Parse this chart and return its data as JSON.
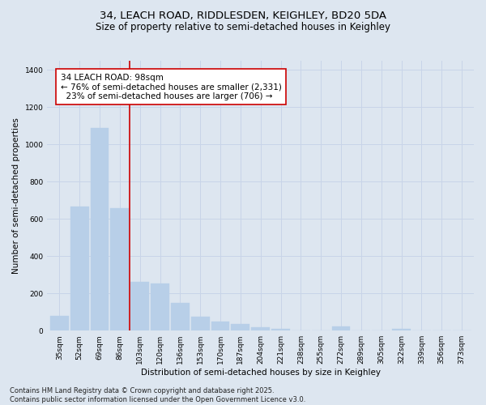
{
  "title_line1": "34, LEACH ROAD, RIDDLESDEN, KEIGHLEY, BD20 5DA",
  "title_line2": "Size of property relative to semi-detached houses in Keighley",
  "xlabel": "Distribution of semi-detached houses by size in Keighley",
  "ylabel": "Number of semi-detached properties",
  "categories": [
    "35sqm",
    "52sqm",
    "69sqm",
    "86sqm",
    "103sqm",
    "120sqm",
    "136sqm",
    "153sqm",
    "170sqm",
    "187sqm",
    "204sqm",
    "221sqm",
    "238sqm",
    "255sqm",
    "272sqm",
    "289sqm",
    "305sqm",
    "322sqm",
    "339sqm",
    "356sqm",
    "373sqm"
  ],
  "values": [
    80,
    665,
    1090,
    660,
    260,
    255,
    150,
    75,
    50,
    35,
    18,
    10,
    0,
    0,
    22,
    0,
    0,
    8,
    0,
    0,
    0
  ],
  "bar_color": "#b8cfe8",
  "bar_edge_color": "#b8cfe8",
  "grid_color": "#c8d4e8",
  "background_color": "#dde6f0",
  "vline_x": 3.5,
  "vline_color": "#cc0000",
  "annotation_text": "34 LEACH ROAD: 98sqm\n← 76% of semi-detached houses are smaller (2,331)\n  23% of semi-detached houses are larger (706) →",
  "annotation_box_color": "#ffffff",
  "annotation_border_color": "#cc0000",
  "ylim": [
    0,
    1450
  ],
  "yticks": [
    0,
    200,
    400,
    600,
    800,
    1000,
    1200,
    1400
  ],
  "footer_text": "Contains HM Land Registry data © Crown copyright and database right 2025.\nContains public sector information licensed under the Open Government Licence v3.0.",
  "title_fontsize": 9.5,
  "subtitle_fontsize": 8.5,
  "axis_label_fontsize": 7.5,
  "tick_fontsize": 6.5,
  "annotation_fontsize": 7.5,
  "footer_fontsize": 6.0
}
